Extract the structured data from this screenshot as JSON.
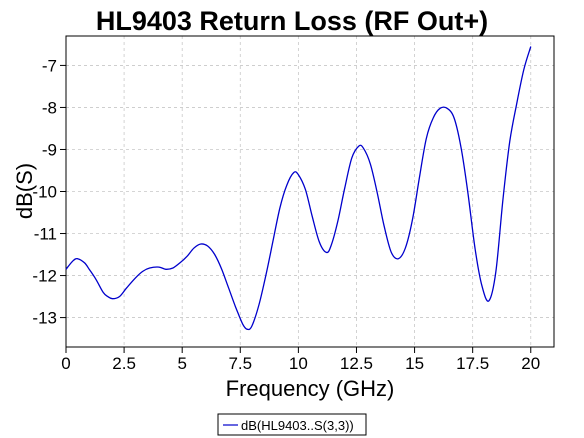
{
  "chart_data": {
    "type": "line",
    "title": "HL9403 Return Loss (RF Out+)",
    "xlabel": "Frequency (GHz)",
    "ylabel": "dB(S)",
    "xlim": [
      0,
      21
    ],
    "ylim": [
      -13.7,
      -6.3
    ],
    "xticks": [
      0,
      2.5,
      5,
      7.5,
      10,
      12.5,
      15,
      17.5,
      20
    ],
    "xtick_labels": [
      "0",
      "2.5",
      "5",
      "7.5",
      "10",
      "12.5",
      "15",
      "17.5",
      "20"
    ],
    "yticks": [
      -13,
      -12,
      -11,
      -10,
      -9,
      -8,
      -7
    ],
    "ytick_labels": [
      "-13",
      "-12",
      "-11",
      "-10",
      "-9",
      "-8",
      "-7"
    ],
    "grid": true,
    "legend": "bottom-center",
    "series": [
      {
        "name": "dB(HL9403..S(3,3))",
        "color": "#0000cc",
        "x": [
          0,
          0.3,
          0.5,
          0.8,
          1.0,
          1.3,
          1.6,
          1.8,
          2.0,
          2.3,
          2.6,
          3.0,
          3.3,
          3.6,
          4.0,
          4.3,
          4.6,
          4.9,
          5.2,
          5.5,
          5.8,
          6.1,
          6.4,
          6.7,
          7.0,
          7.3,
          7.6,
          7.8,
          8.0,
          8.3,
          8.6,
          8.9,
          9.2,
          9.5,
          9.8,
          10.0,
          10.3,
          10.6,
          10.9,
          11.2,
          11.4,
          11.7,
          12.0,
          12.3,
          12.6,
          12.8,
          13.1,
          13.4,
          13.7,
          14.0,
          14.3,
          14.6,
          14.9,
          15.2,
          15.5,
          15.8,
          16.1,
          16.4,
          16.7,
          17.0,
          17.3,
          17.6,
          17.9,
          18.2,
          18.5,
          18.8,
          19.1,
          19.4,
          19.7,
          20.0
        ],
        "y": [
          -11.85,
          -11.65,
          -11.6,
          -11.7,
          -11.85,
          -12.1,
          -12.4,
          -12.5,
          -12.55,
          -12.5,
          -12.3,
          -12.05,
          -11.9,
          -11.82,
          -11.8,
          -11.85,
          -11.82,
          -11.7,
          -11.55,
          -11.35,
          -11.25,
          -11.3,
          -11.5,
          -11.85,
          -12.3,
          -12.75,
          -13.15,
          -13.28,
          -13.2,
          -12.7,
          -12.0,
          -11.2,
          -10.4,
          -9.85,
          -9.55,
          -9.6,
          -9.95,
          -10.6,
          -11.2,
          -11.45,
          -11.3,
          -10.7,
          -9.9,
          -9.2,
          -8.92,
          -8.97,
          -9.35,
          -10.05,
          -10.85,
          -11.45,
          -11.6,
          -11.35,
          -10.7,
          -9.7,
          -8.75,
          -8.25,
          -8.02,
          -8.02,
          -8.25,
          -8.95,
          -10.05,
          -11.35,
          -12.25,
          -12.6,
          -11.9,
          -10.2,
          -8.8,
          -7.9,
          -7.1,
          -6.55
        ]
      }
    ]
  }
}
